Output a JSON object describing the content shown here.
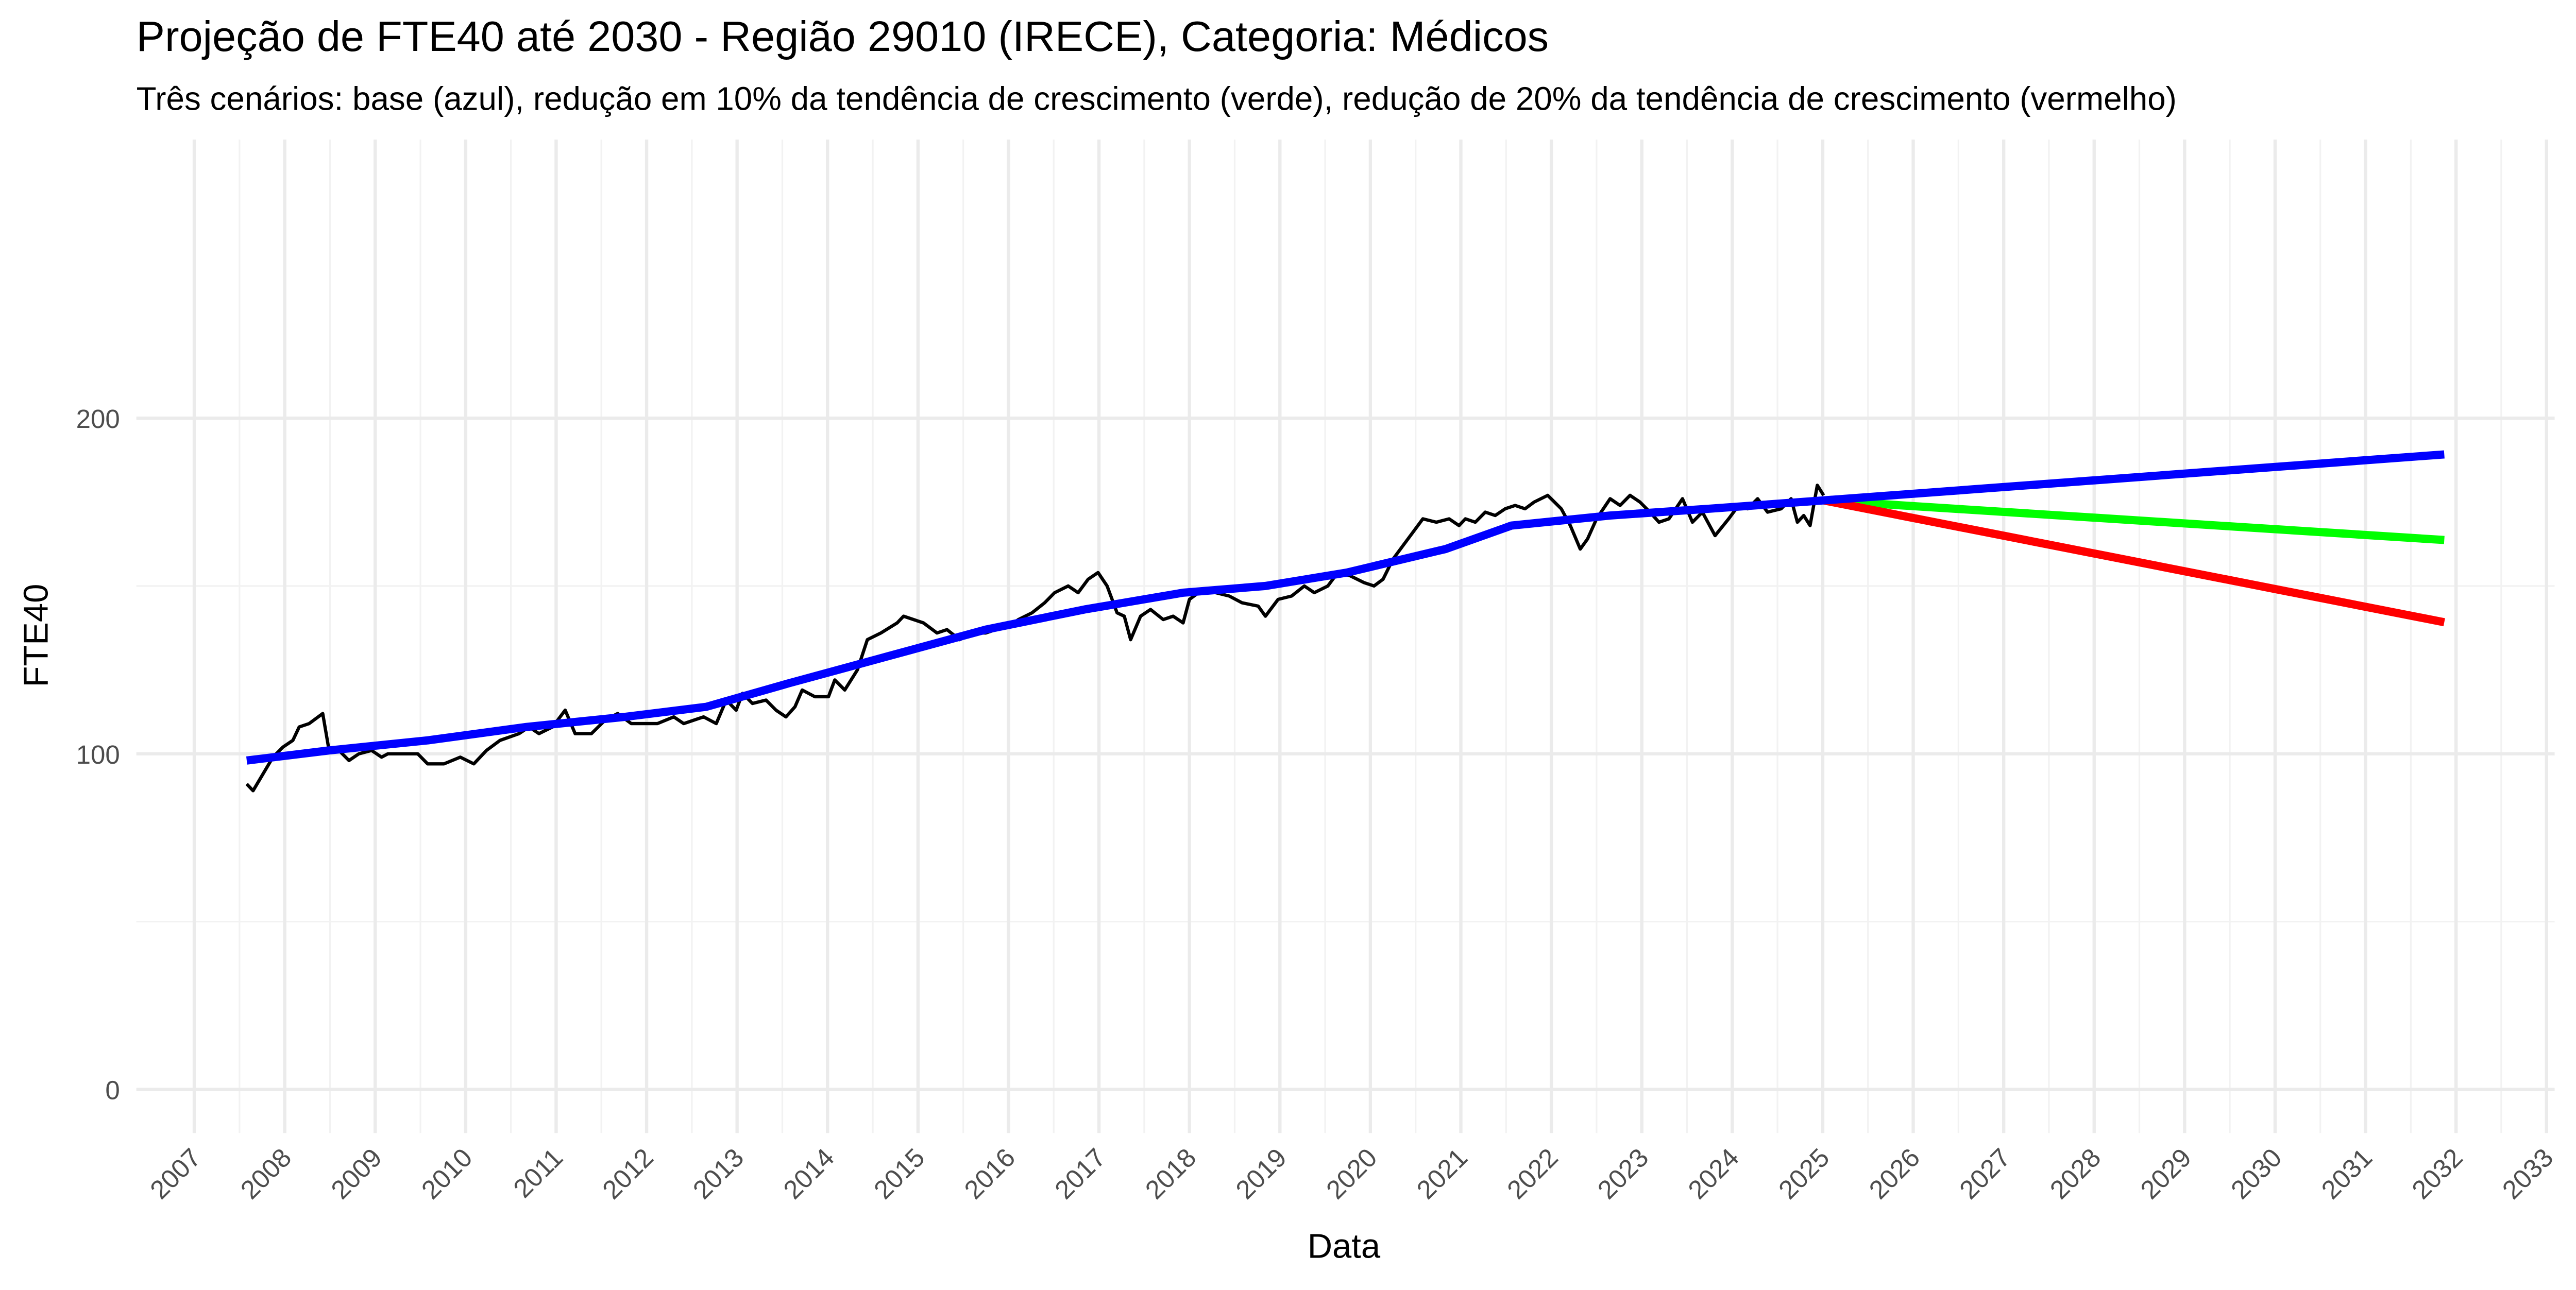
{
  "chart_data": {
    "type": "line",
    "title": "Projeção de FTE40 até 2030 - Região 29010 (IRECE), Categoria: Médicos",
    "subtitle": "Três cenários: base (azul), redução em 10% da tendência de crescimento (verde), redução de 20% da tendência de crescimento (vermelho)",
    "x_label": "Data",
    "y_label": "FTE40",
    "xlim": [
      2006.36,
      2033.09
    ],
    "ylim": [
      -13,
      283
    ],
    "xticks": [
      2007,
      2008,
      2009,
      2010,
      2011,
      2012,
      2013,
      2014,
      2015,
      2016,
      2017,
      2018,
      2019,
      2020,
      2021,
      2022,
      2023,
      2024,
      2025,
      2026,
      2027,
      2028,
      2029,
      2030,
      2031,
      2032,
      2033
    ],
    "yticks": [
      0,
      100,
      200
    ],
    "grid": true,
    "series": [
      {
        "color": "#000000",
        "width": 2,
        "x": [
          2007.58,
          2007.65,
          2007.76,
          2007.87,
          2007.98,
          2008.09,
          2008.16,
          2008.27,
          2008.42,
          2008.49,
          2008.6,
          2008.71,
          2008.82,
          2008.96,
          2009.07,
          2009.14,
          2009.25,
          2009.47,
          2009.58,
          2009.76,
          2009.94,
          2010.09,
          2010.23,
          2010.38,
          2010.59,
          2010.7,
          2010.81,
          2010.96,
          2011.1,
          2011.21,
          2011.39,
          2011.54,
          2011.68,
          2011.83,
          2011.97,
          2012.12,
          2012.3,
          2012.41,
          2012.63,
          2012.77,
          2012.88,
          2012.99,
          2013.06,
          2013.17,
          2013.32,
          2013.43,
          2013.54,
          2013.64,
          2013.72,
          2013.86,
          2014.01,
          2014.08,
          2014.19,
          2014.33,
          2014.44,
          2014.59,
          2014.77,
          2014.84,
          2014.95,
          2015.06,
          2015.21,
          2015.32,
          2015.46,
          2015.61,
          2015.75,
          2015.86,
          2016.01,
          2016.11,
          2016.26,
          2016.4,
          2016.51,
          2016.66,
          2016.77,
          2016.88,
          2016.99,
          2017.09,
          2017.2,
          2017.28,
          2017.35,
          2017.46,
          2017.57,
          2017.71,
          2017.82,
          2017.93,
          2018.0,
          2018.15,
          2018.29,
          2018.44,
          2018.58,
          2018.76,
          2018.84,
          2018.98,
          2019.13,
          2019.27,
          2019.38,
          2019.53,
          2019.64,
          2019.78,
          2019.93,
          2020.04,
          2020.14,
          2020.25,
          2020.36,
          2020.47,
          2020.58,
          2020.73,
          2020.87,
          2020.98,
          2021.05,
          2021.16,
          2021.27,
          2021.38,
          2021.49,
          2021.6,
          2021.71,
          2021.81,
          2021.96,
          2022.11,
          2022.21,
          2022.32,
          2022.4,
          2022.5,
          2022.65,
          2022.76,
          2022.87,
          2022.98,
          2023.09,
          2023.19,
          2023.3,
          2023.45,
          2023.56,
          2023.67,
          2023.81,
          2023.96,
          2024.07,
          2024.17,
          2024.28,
          2024.39,
          2024.54,
          2024.65,
          2024.72,
          2024.79,
          2024.86,
          2024.94,
          2025.01
        ],
        "values": [
          91,
          89,
          94,
          99,
          102,
          104,
          108,
          109,
          112,
          101,
          101,
          98,
          100,
          101,
          99,
          100,
          100,
          100,
          97,
          97,
          99,
          97,
          101,
          104,
          106,
          108,
          106,
          108,
          113,
          106,
          106,
          110,
          112,
          109,
          109,
          109,
          111,
          109,
          111,
          109,
          116,
          113,
          118,
          115,
          116,
          113,
          111,
          114,
          119,
          117,
          117,
          122,
          119,
          125,
          134,
          136,
          139,
          141,
          140,
          139,
          136,
          137,
          134,
          136,
          136,
          137,
          138,
          140,
          142,
          145,
          148,
          150,
          148,
          152,
          154,
          150,
          142,
          141,
          134,
          141,
          143,
          140,
          141,
          139,
          146,
          149,
          148,
          147,
          145,
          144,
          141,
          146,
          147,
          150,
          148,
          150,
          154,
          153,
          151,
          150,
          152,
          158,
          162,
          166,
          170,
          169,
          170,
          168,
          170,
          169,
          172,
          171,
          173,
          174,
          173,
          175,
          177,
          173,
          168,
          161,
          164,
          170,
          176,
          174,
          177,
          175,
          172,
          169,
          170,
          176,
          169,
          172,
          165,
          170,
          174,
          173,
          176,
          172,
          173,
          176,
          169,
          171,
          168,
          180,
          177
        ]
      },
      {
        "color": "#00ff00",
        "width": 5,
        "x": [
          2025.01,
          2031.87
        ],
        "values": [
          175.5,
          163.7
        ]
      },
      {
        "color": "#ff0000",
        "width": 5,
        "x": [
          2025.01,
          2031.87
        ],
        "values": [
          175.5,
          139.2
        ]
      },
      {
        "color": "#0000ff",
        "width": 5,
        "x": [
          2007.58,
          2008.49,
          2009.58,
          2010.67,
          2011.76,
          2012.66,
          2013.57,
          2014.66,
          2015.75,
          2016.84,
          2017.93,
          2018.84,
          2019.74,
          2020.83,
          2021.56,
          2022.65,
          2023.74,
          2025.01,
          2031.87
        ],
        "values": [
          98,
          101,
          104,
          108,
          111,
          114,
          121,
          129,
          137,
          143,
          148,
          150,
          154,
          161,
          168,
          171,
          173,
          175.5,
          189.2
        ]
      }
    ]
  }
}
